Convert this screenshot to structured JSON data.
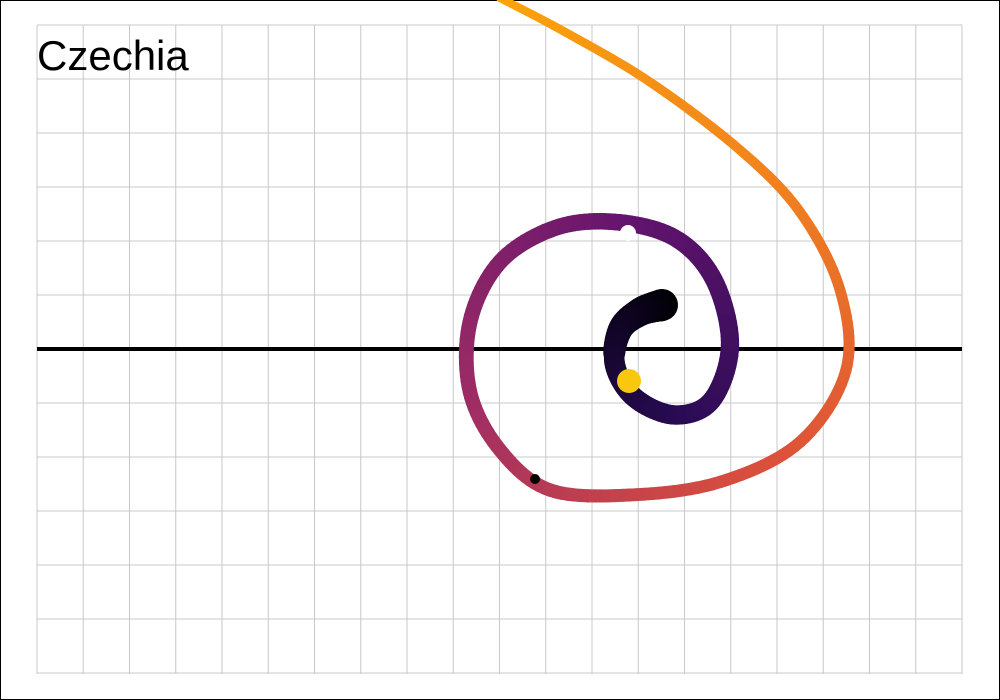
{
  "title": "Czechia"
}
